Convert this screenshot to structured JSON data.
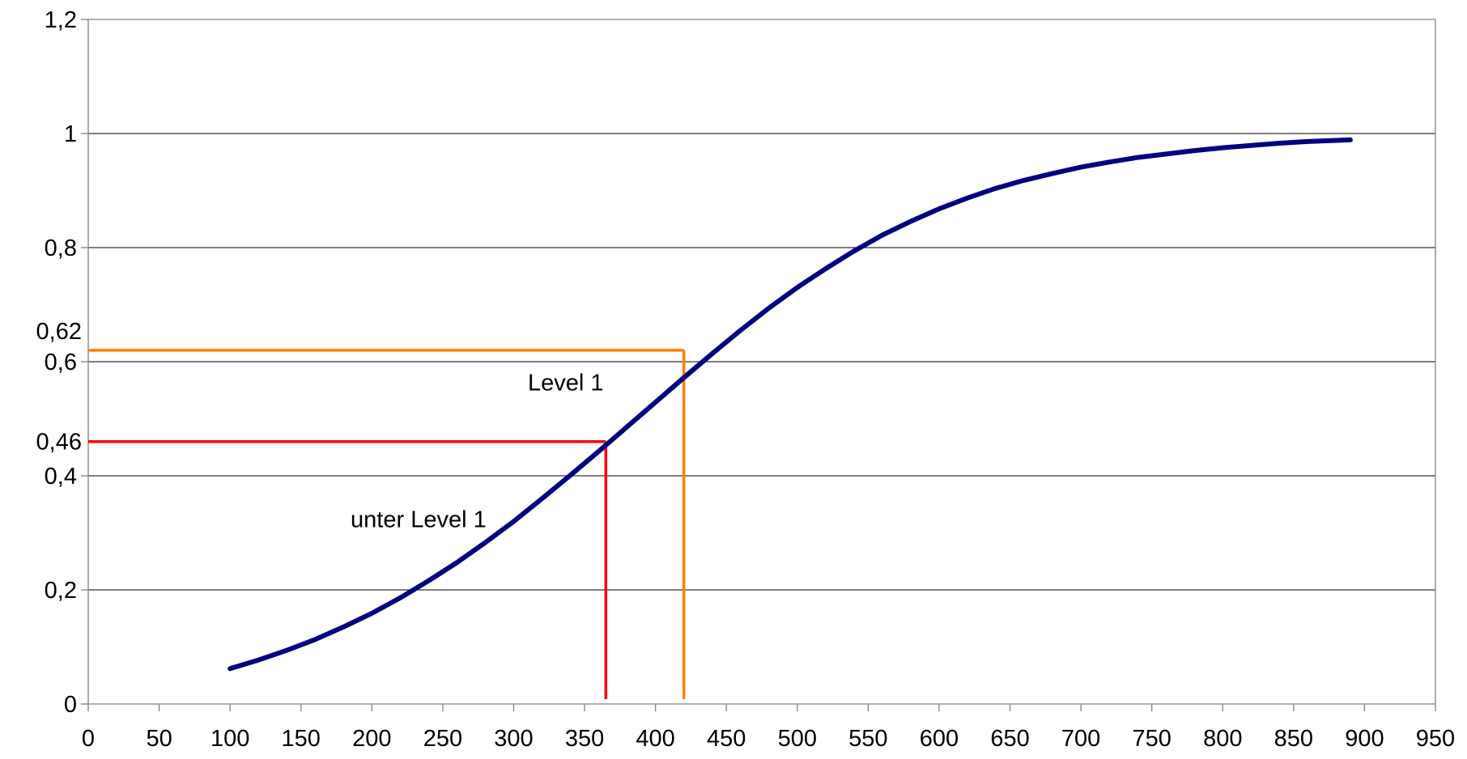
{
  "chart_data": {
    "type": "line",
    "title": "",
    "xlabel": "",
    "ylabel": "",
    "xlim": [
      0,
      950
    ],
    "ylim": [
      0,
      1.2
    ],
    "grid": {
      "horizontal": true,
      "vertical": false
    },
    "legend": "none",
    "x_ticks": [
      "0",
      "50",
      "100",
      "150",
      "200",
      "250",
      "300",
      "350",
      "400",
      "450",
      "500",
      "550",
      "600",
      "650",
      "700",
      "750",
      "800",
      "850",
      "900",
      "950"
    ],
    "y_ticks": [
      {
        "value": 0,
        "label": "0"
      },
      {
        "value": 0.2,
        "label": "0,2"
      },
      {
        "value": 0.4,
        "label": "0,4"
      },
      {
        "value": 0.6,
        "label": "0,6"
      },
      {
        "value": 0.8,
        "label": "0,8"
      },
      {
        "value": 1.0,
        "label": "1"
      },
      {
        "value": 1.2,
        "label": "1,2"
      }
    ],
    "extra_y_labels": [
      {
        "value": 0.62,
        "label": "0,62"
      },
      {
        "value": 0.46,
        "label": "0,46"
      }
    ],
    "series": [
      {
        "color": "#000080",
        "x": [
          100,
          120,
          140,
          160,
          180,
          200,
          220,
          240,
          260,
          280,
          300,
          320,
          340,
          360,
          380,
          400,
          420,
          440,
          460,
          480,
          500,
          520,
          540,
          560,
          580,
          600,
          620,
          640,
          660,
          680,
          700,
          720,
          740,
          760,
          780,
          800,
          820,
          840,
          860,
          880,
          890
        ],
        "y": [
          0.062,
          0.077,
          0.094,
          0.113,
          0.135,
          0.159,
          0.186,
          0.216,
          0.248,
          0.283,
          0.32,
          0.36,
          0.401,
          0.443,
          0.486,
          0.529,
          0.572,
          0.614,
          0.655,
          0.694,
          0.73,
          0.763,
          0.794,
          0.822,
          0.846,
          0.868,
          0.887,
          0.904,
          0.918,
          0.93,
          0.941,
          0.95,
          0.958,
          0.964,
          0.97,
          0.975,
          0.979,
          0.983,
          0.986,
          0.988,
          0.989
        ]
      }
    ],
    "reference_lines": [
      {
        "color": "#ff0000",
        "x": 365,
        "y": 0.46
      },
      {
        "color": "#ff7f00",
        "x": 420,
        "y": 0.62
      }
    ],
    "annotations": [
      {
        "text": "Level 1",
        "x": 310,
        "y": 0.55
      },
      {
        "text": "unter Level 1",
        "x": 185,
        "y": 0.31
      }
    ],
    "colors": {
      "axis": "#808080",
      "grid": "#000000",
      "text": "#000000",
      "curve": "#000080"
    }
  }
}
